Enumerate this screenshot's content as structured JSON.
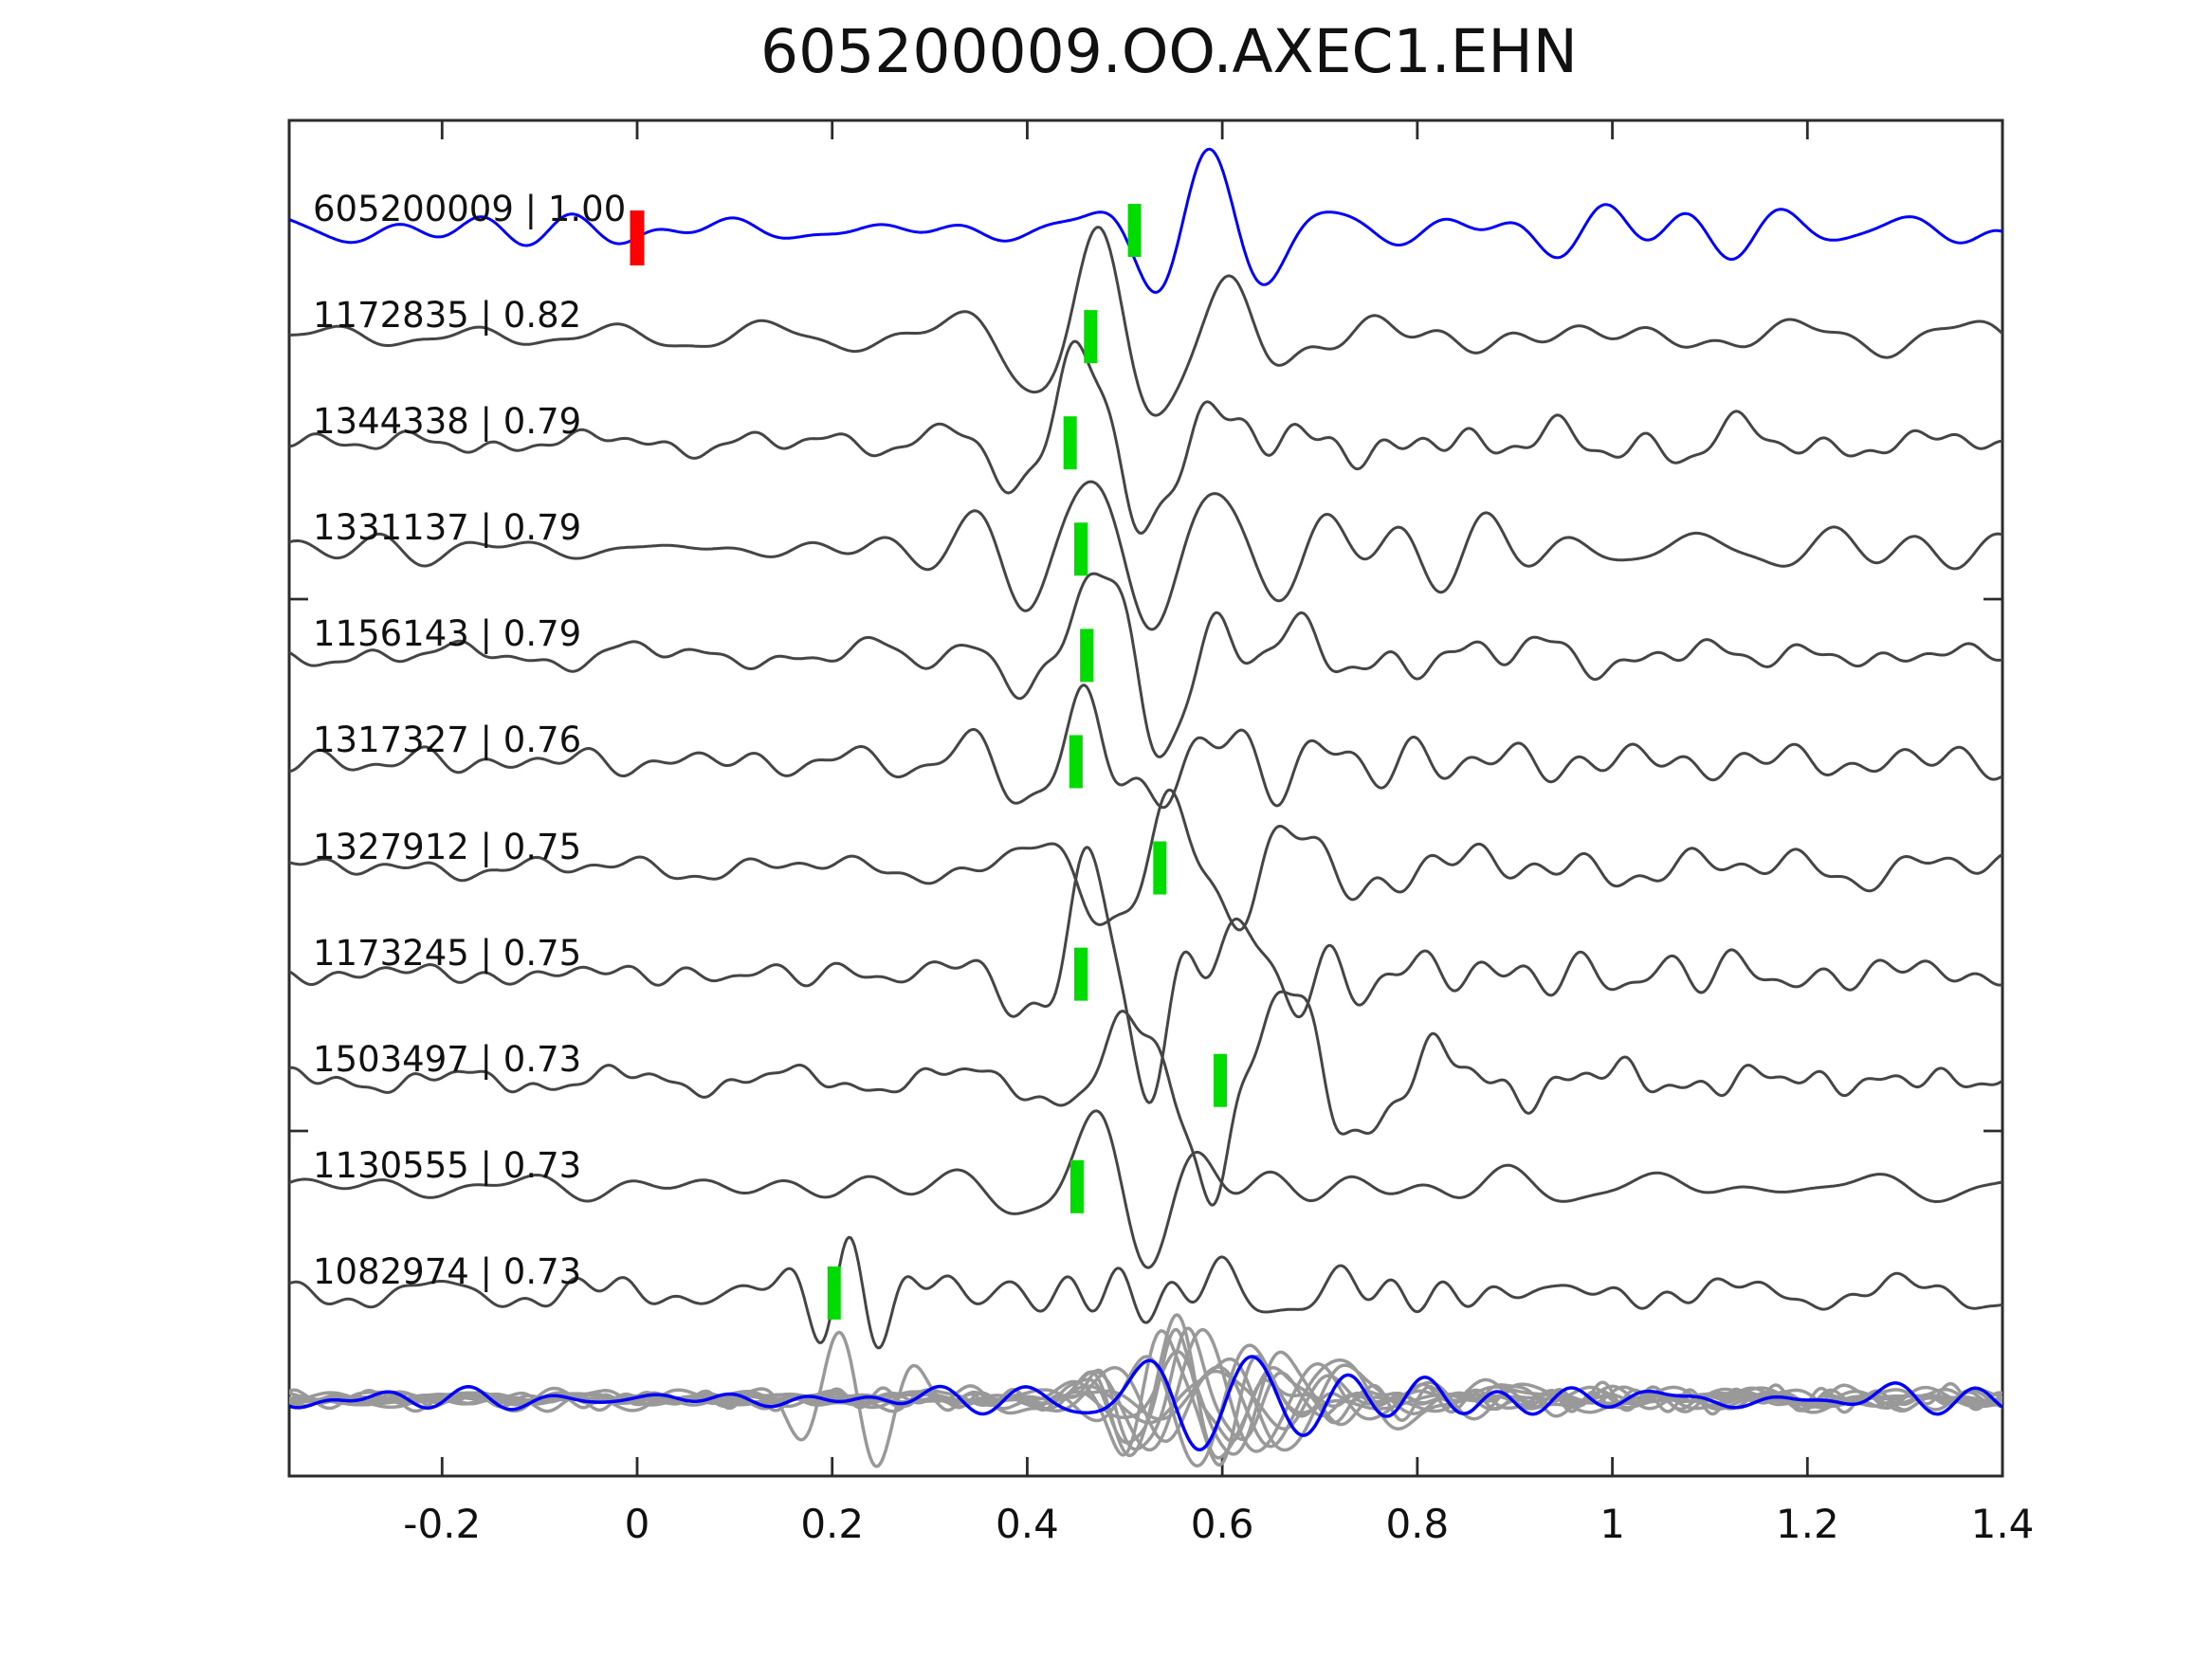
{
  "chart_data": {
    "type": "line",
    "title": "605200009.OO.AXEC1.EHN",
    "description": "Seismic template-matching gather: blue template waveform and gray detected waveforms, green bars = pick times, red bar = zero time, bottom row = all traces overlaid",
    "x_axis": {
      "tick_labels": [
        "-0.2",
        "0",
        "0.2",
        "0.4",
        "0.6",
        "0.8",
        "1",
        "1.2",
        "1.4"
      ],
      "tick_values": [
        -0.2,
        0.0,
        0.2,
        0.4,
        0.6,
        0.8,
        1.0,
        1.2,
        1.4
      ],
      "range": [
        -0.357,
        1.4
      ],
      "grid": false
    },
    "traces": [
      {
        "label": "605200009 | 1.00",
        "id": "605200009",
        "correlation": 1.0,
        "role": "template",
        "pick_time": 0.51,
        "zero_marker_time": 0.0,
        "synth": {
          "seed": 101,
          "noise_amp": 13,
          "burst_amp": 78,
          "burst_center": 0.545,
          "period": 0.125,
          "phase": 5.74,
          "tail_amp": 10,
          "tail_decay": 2.5
        }
      },
      {
        "label": "1172835 | 0.82",
        "id": "1172835",
        "correlation": 0.82,
        "role": "detection",
        "pick_time": 0.465,
        "synth": {
          "seed": 202,
          "noise_amp": 9,
          "burst_amp": 92,
          "burst_center": 0.495,
          "period": 0.135,
          "phase": 2.6,
          "tail_amp": 30,
          "tail_decay": 0.45
        }
      },
      {
        "label": "1344338 | 0.79",
        "id": "1344338",
        "correlation": 0.79,
        "role": "detection",
        "pick_time": 0.444,
        "synth": {
          "seed": 303,
          "noise_amp": 9,
          "burst_amp": 90,
          "burst_center": 0.474,
          "period": 0.13,
          "phase": 2.6,
          "tail_amp": 26,
          "tail_decay": 0.45
        }
      },
      {
        "label": "1331137 | 0.79",
        "id": "1331137",
        "correlation": 0.79,
        "role": "detection",
        "pick_time": 0.455,
        "synth": {
          "seed": 404,
          "noise_amp": 10,
          "burst_amp": 92,
          "burst_center": 0.485,
          "period": 0.135,
          "phase": 2.6,
          "tail_amp": 30,
          "tail_decay": 0.45
        }
      },
      {
        "label": "1156143 | 0.79",
        "id": "1156143",
        "correlation": 0.79,
        "role": "detection",
        "pick_time": 0.461,
        "synth": {
          "seed": 505,
          "noise_amp": 9,
          "burst_amp": 90,
          "burst_center": 0.491,
          "period": 0.13,
          "phase": 2.6,
          "tail_amp": 27,
          "tail_decay": 0.45
        }
      },
      {
        "label": "1317327 | 0.76",
        "id": "1317327",
        "correlation": 0.76,
        "role": "detection",
        "pick_time": 0.45,
        "synth": {
          "seed": 606,
          "noise_amp": 10,
          "burst_amp": 88,
          "burst_center": 0.48,
          "period": 0.125,
          "phase": 2.6,
          "tail_amp": 24,
          "tail_decay": 0.45
        }
      },
      {
        "label": "1327912 | 0.75",
        "id": "1327912",
        "correlation": 0.75,
        "role": "detection",
        "pick_time": 0.536,
        "synth": {
          "seed": 707,
          "noise_amp": 9,
          "burst_amp": 90,
          "burst_center": 0.566,
          "period": 0.14,
          "phase": 2.6,
          "tail_amp": 26,
          "tail_decay": 0.45
        }
      },
      {
        "label": "1173245 | 0.75",
        "id": "1173245",
        "correlation": 0.75,
        "role": "detection",
        "pick_time": 0.455,
        "synth": {
          "seed": 808,
          "noise_amp": 9,
          "burst_amp": 92,
          "burst_center": 0.485,
          "period": 0.135,
          "phase": 2.6,
          "tail_amp": 28,
          "tail_decay": 0.45
        }
      },
      {
        "label": "1503497 | 0.73",
        "id": "1503497",
        "correlation": 0.73,
        "role": "detection",
        "pick_time": 0.598,
        "synth": {
          "seed": 909,
          "noise_amp": 10,
          "burst_amp": 80,
          "burst_center": 0.615,
          "period": 0.16,
          "phase": 5.74,
          "tail_amp": 24,
          "tail_decay": 0.45
        }
      },
      {
        "label": "1130555 | 0.73",
        "id": "1130555",
        "correlation": 0.73,
        "role": "detection",
        "pick_time": 0.451,
        "synth": {
          "seed": 1010,
          "noise_amp": 8,
          "burst_amp": 88,
          "burst_center": 0.481,
          "period": 0.13,
          "phase": 2.6,
          "tail_amp": 22,
          "tail_decay": 0.45
        }
      },
      {
        "label": "1082974 | 0.73",
        "id": "1082974",
        "correlation": 0.73,
        "role": "detection",
        "pick_time": 0.202,
        "synth": {
          "seed": 1111,
          "noise_amp": 11,
          "burst_amp": 48,
          "burst_center": 0.232,
          "period": 0.075,
          "phase": 2.6,
          "tail_amp": 16,
          "tail_decay": 0.6,
          "burst2": {
            "center": 0.62,
            "amp": 26,
            "period": 0.13,
            "phase": 2.6
          }
        }
      }
    ],
    "overlay_row": {
      "gray_traces": [
        {
          "seed": 31,
          "noise_amp": 6,
          "burst_amp": 72,
          "burst_center": 0.56,
          "period": 0.1,
          "phase": 2.6,
          "tail_amp": 9,
          "tail_decay": 0.45
        },
        {
          "seed": 32,
          "noise_amp": 5,
          "burst_amp": 58,
          "burst_center": 0.6,
          "period": 0.12,
          "phase": 4.0,
          "tail_amp": 8,
          "tail_decay": 0.45
        },
        {
          "seed": 33,
          "noise_amp": 7,
          "burst_amp": 80,
          "burst_center": 0.55,
          "period": 0.09,
          "phase": 1.2,
          "tail_amp": 10,
          "tail_decay": 0.45
        },
        {
          "seed": 34,
          "noise_amp": 5,
          "burst_amp": 52,
          "burst_center": 0.63,
          "period": 0.13,
          "phase": 3.3,
          "tail_amp": 8,
          "tail_decay": 0.45
        },
        {
          "seed": 35,
          "noise_amp": 6,
          "burst_amp": 66,
          "burst_center": 0.58,
          "period": 0.11,
          "phase": 5.1,
          "tail_amp": 9,
          "tail_decay": 0.45
        },
        {
          "seed": 36,
          "noise_amp": 5,
          "burst_amp": 60,
          "burst_center": 0.54,
          "period": 0.1,
          "phase": 0.6,
          "tail_amp": 8,
          "tail_decay": 0.45
        },
        {
          "seed": 37,
          "noise_amp": 6,
          "burst_amp": 75,
          "burst_center": 0.59,
          "period": 0.12,
          "phase": 2.0,
          "tail_amp": 10,
          "tail_decay": 0.45
        },
        {
          "seed": 38,
          "noise_amp": 5,
          "burst_amp": 55,
          "burst_center": 0.66,
          "period": 0.14,
          "phase": 4.6,
          "tail_amp": 8,
          "tail_decay": 0.45
        },
        {
          "seed": 39,
          "noise_amp": 7,
          "burst_amp": 70,
          "burst_center": 0.57,
          "period": 0.1,
          "phase": 1.8,
          "tail_amp": 9,
          "tail_decay": 0.45
        },
        {
          "seed": 40,
          "noise_amp": 8,
          "burst_amp": 48,
          "burst_center": 0.22,
          "period": 0.08,
          "phase": 2.6,
          "tail_amp": 12,
          "tail_decay": 0.6,
          "burst2": {
            "center": 0.62,
            "amp": 30,
            "period": 0.12,
            "phase": 2.6
          }
        }
      ],
      "template_trace": {
        "seed": 99,
        "noise_amp": 8,
        "burst_amp": 55,
        "burst_center": 0.6,
        "period": 0.11,
        "phase": 5.74,
        "tail_amp": 11,
        "tail_decay": 0.9
      }
    }
  },
  "colors": {
    "template_trace": "#0000ff",
    "detection_trace": "#454545",
    "overlay_trace": "#999999",
    "pick_marker": "#00dc00",
    "zero_marker": "#ff0000",
    "axis": "#2b2b2b",
    "text": "#111111",
    "background": "#ffffff"
  }
}
